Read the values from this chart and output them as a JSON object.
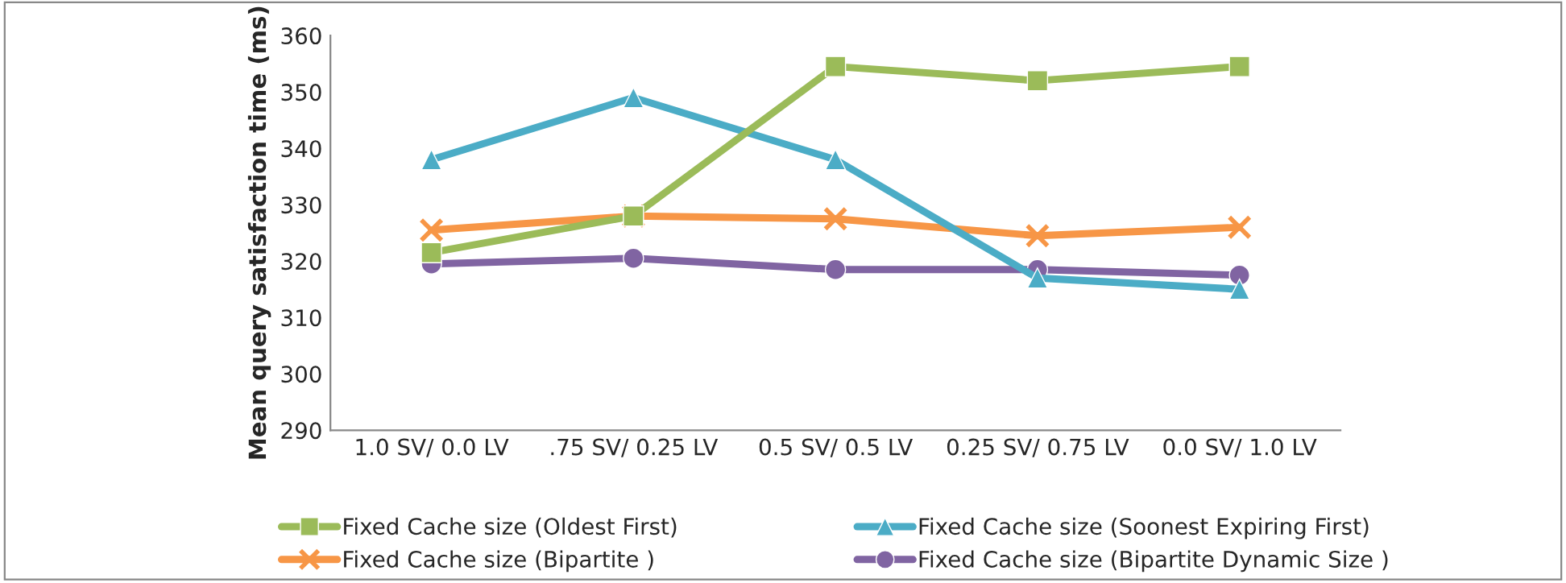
{
  "chart_data": {
    "type": "line",
    "ylabel": "Mean query satisfaction time (ms)",
    "categories": [
      "1.0 SV/ 0.0 LV",
      ".75 SV/ 0.25 LV",
      "0.5 SV/ 0.5 LV",
      "0.25 SV/ 0.75 LV",
      "0.0 SV/ 1.0 LV"
    ],
    "series": [
      {
        "name": "Fixed Cache size (Oldest First)",
        "color": "#9bbb59",
        "marker": "square",
        "values": [
          321.5,
          328,
          354.5,
          352,
          354.5
        ]
      },
      {
        "name": "Fixed Cache size (Soonest Expiring First)",
        "color": "#4bacc6",
        "marker": "triangle",
        "values": [
          338,
          349,
          338,
          317,
          315
        ]
      },
      {
        "name": "Fixed Cache size (Bipartite )",
        "color": "#f79646",
        "marker": "cross",
        "values": [
          325.5,
          328,
          327.5,
          324.5,
          326
        ]
      },
      {
        "name": "Fixed Cache size (Bipartite Dynamic Size )",
        "color": "#8064a2",
        "marker": "circle",
        "values": [
          319.5,
          320.5,
          318.5,
          318.5,
          317.5
        ]
      }
    ],
    "ylim": [
      290,
      360
    ],
    "yticks": [
      290,
      300,
      310,
      320,
      330,
      340,
      350,
      360
    ],
    "grid": false,
    "legend": "bottom"
  }
}
